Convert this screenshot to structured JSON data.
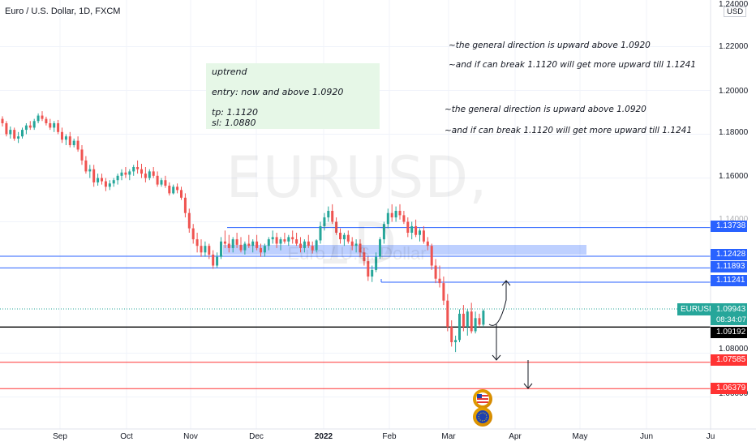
{
  "title": "Euro / U.S. Dollar, 1D, FXCM",
  "watermark": "EURUSD, 1D",
  "watermark_sub": "Euro / U.S. Dollar",
  "currency": "USD",
  "note": {
    "lines": [
      "uptrend",
      "entry: now and above 1.0920",
      "tp: 1.1120",
      "sl: 1.0880"
    ]
  },
  "annotations": [
    "~the general direction is upward above 1.0920",
    "~and if can break 1.1120 will get more upward till 1.1241",
    "~the general direction is upward above 1.0920",
    "~and if can break 1.1120 will get more upward till 1.1241"
  ],
  "y_axis": {
    "top_label": "1.24000",
    "labels": [
      "1.22000",
      "1.20000",
      "1.18000",
      "1.16000",
      "1.08000",
      "1.06000"
    ],
    "hidden_label": "1.14000"
  },
  "x_axis": {
    "labels": [
      "Sep",
      "Oct",
      "Nov",
      "Dec",
      "2022",
      "Feb",
      "Mar",
      "Apr",
      "May",
      "Jun",
      "Ju"
    ]
  },
  "levels": [
    {
      "price": "1.13738",
      "color": "#2962ff"
    },
    {
      "price": "1.12428",
      "color": "#2962ff"
    },
    {
      "price": "1.11893",
      "color": "#2962ff"
    },
    {
      "price": "1.11241",
      "color": "#2962ff"
    },
    {
      "price": "1.09192",
      "color": "#000000"
    },
    {
      "price": "1.07585",
      "color": "#ff3333"
    },
    {
      "price": "1.06379",
      "color": "#ff3333"
    }
  ],
  "symbol": {
    "name": "EURUSD",
    "price": "1.09943",
    "timer": "08:34:07",
    "color": "#26a69a"
  },
  "chart_data": {
    "type": "candlestick",
    "title": "Euro / U.S. Dollar, 1D, FXCM",
    "ylim": [
      1.055,
      1.245
    ],
    "candles": [
      {
        "o": 1.187,
        "h": 1.1882,
        "l": 1.1835,
        "c": 1.185
      },
      {
        "o": 1.185,
        "h": 1.186,
        "l": 1.179,
        "c": 1.18
      },
      {
        "o": 1.18,
        "h": 1.1835,
        "l": 1.178,
        "c": 1.182
      },
      {
        "o": 1.182,
        "h": 1.183,
        "l": 1.177,
        "c": 1.178
      },
      {
        "o": 1.178,
        "h": 1.181,
        "l": 1.176,
        "c": 1.179
      },
      {
        "o": 1.179,
        "h": 1.183,
        "l": 1.178,
        "c": 1.182
      },
      {
        "o": 1.182,
        "h": 1.185,
        "l": 1.18,
        "c": 1.184
      },
      {
        "o": 1.184,
        "h": 1.186,
        "l": 1.182,
        "c": 1.183
      },
      {
        "o": 1.183,
        "h": 1.187,
        "l": 1.182,
        "c": 1.186
      },
      {
        "o": 1.186,
        "h": 1.1895,
        "l": 1.185,
        "c": 1.1885
      },
      {
        "o": 1.1885,
        "h": 1.1905,
        "l": 1.186,
        "c": 1.187
      },
      {
        "o": 1.187,
        "h": 1.188,
        "l": 1.184,
        "c": 1.185
      },
      {
        "o": 1.185,
        "h": 1.187,
        "l": 1.182,
        "c": 1.183
      },
      {
        "o": 1.183,
        "h": 1.186,
        "l": 1.181,
        "c": 1.185
      },
      {
        "o": 1.185,
        "h": 1.1865,
        "l": 1.18,
        "c": 1.181
      },
      {
        "o": 1.181,
        "h": 1.183,
        "l": 1.176,
        "c": 1.1775
      },
      {
        "o": 1.1775,
        "h": 1.18,
        "l": 1.175,
        "c": 1.179
      },
      {
        "o": 1.179,
        "h": 1.181,
        "l": 1.174,
        "c": 1.175
      },
      {
        "o": 1.175,
        "h": 1.178,
        "l": 1.174,
        "c": 1.177
      },
      {
        "o": 1.177,
        "h": 1.179,
        "l": 1.172,
        "c": 1.173
      },
      {
        "o": 1.173,
        "h": 1.175,
        "l": 1.166,
        "c": 1.168
      },
      {
        "o": 1.168,
        "h": 1.17,
        "l": 1.162,
        "c": 1.163
      },
      {
        "o": 1.163,
        "h": 1.166,
        "l": 1.16,
        "c": 1.164
      },
      {
        "o": 1.164,
        "h": 1.166,
        "l": 1.156,
        "c": 1.158
      },
      {
        "o": 1.158,
        "h": 1.162,
        "l": 1.1565,
        "c": 1.16
      },
      {
        "o": 1.16,
        "h": 1.162,
        "l": 1.157,
        "c": 1.1585
      },
      {
        "o": 1.1585,
        "h": 1.16,
        "l": 1.154,
        "c": 1.156
      },
      {
        "o": 1.156,
        "h": 1.159,
        "l": 1.1545,
        "c": 1.1575
      },
      {
        "o": 1.1575,
        "h": 1.16,
        "l": 1.156,
        "c": 1.159
      },
      {
        "o": 1.159,
        "h": 1.162,
        "l": 1.157,
        "c": 1.161
      },
      {
        "o": 1.161,
        "h": 1.164,
        "l": 1.159,
        "c": 1.1625
      },
      {
        "o": 1.1625,
        "h": 1.165,
        "l": 1.16,
        "c": 1.1615
      },
      {
        "o": 1.1615,
        "h": 1.164,
        "l": 1.159,
        "c": 1.163
      },
      {
        "o": 1.163,
        "h": 1.166,
        "l": 1.161,
        "c": 1.165
      },
      {
        "o": 1.165,
        "h": 1.168,
        "l": 1.162,
        "c": 1.164
      },
      {
        "o": 1.164,
        "h": 1.1665,
        "l": 1.16,
        "c": 1.162
      },
      {
        "o": 1.162,
        "h": 1.165,
        "l": 1.158,
        "c": 1.16
      },
      {
        "o": 1.16,
        "h": 1.164,
        "l": 1.159,
        "c": 1.163
      },
      {
        "o": 1.163,
        "h": 1.165,
        "l": 1.16,
        "c": 1.161
      },
      {
        "o": 1.161,
        "h": 1.163,
        "l": 1.156,
        "c": 1.157
      },
      {
        "o": 1.157,
        "h": 1.16,
        "l": 1.156,
        "c": 1.159
      },
      {
        "o": 1.159,
        "h": 1.161,
        "l": 1.1555,
        "c": 1.1565
      },
      {
        "o": 1.1565,
        "h": 1.158,
        "l": 1.152,
        "c": 1.153
      },
      {
        "o": 1.153,
        "h": 1.157,
        "l": 1.1525,
        "c": 1.156
      },
      {
        "o": 1.156,
        "h": 1.1575,
        "l": 1.153,
        "c": 1.1545
      },
      {
        "o": 1.1545,
        "h": 1.156,
        "l": 1.15,
        "c": 1.151
      },
      {
        "o": 1.151,
        "h": 1.153,
        "l": 1.142,
        "c": 1.144
      },
      {
        "o": 1.144,
        "h": 1.146,
        "l": 1.135,
        "c": 1.137
      },
      {
        "o": 1.137,
        "h": 1.139,
        "l": 1.13,
        "c": 1.132
      },
      {
        "o": 1.132,
        "h": 1.135,
        "l": 1.126,
        "c": 1.129
      },
      {
        "o": 1.129,
        "h": 1.132,
        "l": 1.124,
        "c": 1.126
      },
      {
        "o": 1.126,
        "h": 1.131,
        "l": 1.124,
        "c": 1.129
      },
      {
        "o": 1.129,
        "h": 1.13,
        "l": 1.123,
        "c": 1.125
      },
      {
        "o": 1.125,
        "h": 1.127,
        "l": 1.1185,
        "c": 1.12
      },
      {
        "o": 1.12,
        "h": 1.126,
        "l": 1.119,
        "c": 1.124
      },
      {
        "o": 1.124,
        "h": 1.133,
        "l": 1.123,
        "c": 1.131
      },
      {
        "o": 1.131,
        "h": 1.136,
        "l": 1.128,
        "c": 1.13
      },
      {
        "o": 1.13,
        "h": 1.134,
        "l": 1.126,
        "c": 1.128
      },
      {
        "o": 1.128,
        "h": 1.133,
        "l": 1.126,
        "c": 1.132
      },
      {
        "o": 1.132,
        "h": 1.135,
        "l": 1.128,
        "c": 1.1295
      },
      {
        "o": 1.1295,
        "h": 1.133,
        "l": 1.126,
        "c": 1.127
      },
      {
        "o": 1.127,
        "h": 1.131,
        "l": 1.125,
        "c": 1.13
      },
      {
        "o": 1.13,
        "h": 1.134,
        "l": 1.128,
        "c": 1.129
      },
      {
        "o": 1.129,
        "h": 1.132,
        "l": 1.126,
        "c": 1.131
      },
      {
        "o": 1.131,
        "h": 1.134,
        "l": 1.127,
        "c": 1.128
      },
      {
        "o": 1.128,
        "h": 1.13,
        "l": 1.124,
        "c": 1.126
      },
      {
        "o": 1.126,
        "h": 1.13,
        "l": 1.124,
        "c": 1.129
      },
      {
        "o": 1.129,
        "h": 1.133,
        "l": 1.127,
        "c": 1.132
      },
      {
        "o": 1.132,
        "h": 1.136,
        "l": 1.13,
        "c": 1.133
      },
      {
        "o": 1.133,
        "h": 1.135,
        "l": 1.128,
        "c": 1.13
      },
      {
        "o": 1.13,
        "h": 1.133,
        "l": 1.127,
        "c": 1.132
      },
      {
        "o": 1.132,
        "h": 1.135,
        "l": 1.13,
        "c": 1.131
      },
      {
        "o": 1.131,
        "h": 1.134,
        "l": 1.129,
        "c": 1.133
      },
      {
        "o": 1.133,
        "h": 1.136,
        "l": 1.13,
        "c": 1.132
      },
      {
        "o": 1.132,
        "h": 1.135,
        "l": 1.129,
        "c": 1.13
      },
      {
        "o": 1.13,
        "h": 1.133,
        "l": 1.126,
        "c": 1.128
      },
      {
        "o": 1.128,
        "h": 1.132,
        "l": 1.126,
        "c": 1.131
      },
      {
        "o": 1.131,
        "h": 1.134,
        "l": 1.128,
        "c": 1.129
      },
      {
        "o": 1.129,
        "h": 1.131,
        "l": 1.1255,
        "c": 1.127
      },
      {
        "o": 1.127,
        "h": 1.132,
        "l": 1.126,
        "c": 1.1315
      },
      {
        "o": 1.1315,
        "h": 1.14,
        "l": 1.13,
        "c": 1.138
      },
      {
        "o": 1.138,
        "h": 1.144,
        "l": 1.136,
        "c": 1.142
      },
      {
        "o": 1.142,
        "h": 1.147,
        "l": 1.14,
        "c": 1.145
      },
      {
        "o": 1.145,
        "h": 1.148,
        "l": 1.139,
        "c": 1.14
      },
      {
        "o": 1.14,
        "h": 1.142,
        "l": 1.134,
        "c": 1.135
      },
      {
        "o": 1.135,
        "h": 1.137,
        "l": 1.13,
        "c": 1.132
      },
      {
        "o": 1.132,
        "h": 1.135,
        "l": 1.129,
        "c": 1.134
      },
      {
        "o": 1.134,
        "h": 1.136,
        "l": 1.13,
        "c": 1.131
      },
      {
        "o": 1.131,
        "h": 1.133,
        "l": 1.127,
        "c": 1.129
      },
      {
        "o": 1.129,
        "h": 1.132,
        "l": 1.126,
        "c": 1.13
      },
      {
        "o": 1.13,
        "h": 1.132,
        "l": 1.124,
        "c": 1.126
      },
      {
        "o": 1.126,
        "h": 1.128,
        "l": 1.12,
        "c": 1.122
      },
      {
        "o": 1.122,
        "h": 1.124,
        "l": 1.113,
        "c": 1.115
      },
      {
        "o": 1.115,
        "h": 1.12,
        "l": 1.1125,
        "c": 1.118
      },
      {
        "o": 1.118,
        "h": 1.126,
        "l": 1.117,
        "c": 1.124
      },
      {
        "o": 1.124,
        "h": 1.133,
        "l": 1.123,
        "c": 1.132
      },
      {
        "o": 1.132,
        "h": 1.14,
        "l": 1.13,
        "c": 1.139
      },
      {
        "o": 1.139,
        "h": 1.146,
        "l": 1.137,
        "c": 1.144
      },
      {
        "o": 1.144,
        "h": 1.148,
        "l": 1.14,
        "c": 1.142
      },
      {
        "o": 1.142,
        "h": 1.147,
        "l": 1.14,
        "c": 1.145
      },
      {
        "o": 1.145,
        "h": 1.148,
        "l": 1.141,
        "c": 1.143
      },
      {
        "o": 1.143,
        "h": 1.145,
        "l": 1.139,
        "c": 1.14
      },
      {
        "o": 1.14,
        "h": 1.142,
        "l": 1.133,
        "c": 1.135
      },
      {
        "o": 1.135,
        "h": 1.14,
        "l": 1.132,
        "c": 1.138
      },
      {
        "o": 1.138,
        "h": 1.141,
        "l": 1.133,
        "c": 1.134
      },
      {
        "o": 1.134,
        "h": 1.137,
        "l": 1.131,
        "c": 1.136
      },
      {
        "o": 1.136,
        "h": 1.138,
        "l": 1.13,
        "c": 1.131
      },
      {
        "o": 1.131,
        "h": 1.133,
        "l": 1.127,
        "c": 1.129
      },
      {
        "o": 1.129,
        "h": 1.13,
        "l": 1.118,
        "c": 1.12
      },
      {
        "o": 1.12,
        "h": 1.123,
        "l": 1.112,
        "c": 1.114
      },
      {
        "o": 1.114,
        "h": 1.12,
        "l": 1.11,
        "c": 1.112
      },
      {
        "o": 1.112,
        "h": 1.115,
        "l": 1.102,
        "c": 1.104
      },
      {
        "o": 1.104,
        "h": 1.107,
        "l": 1.09,
        "c": 1.092
      },
      {
        "o": 1.092,
        "h": 1.095,
        "l": 1.083,
        "c": 1.085
      },
      {
        "o": 1.085,
        "h": 1.088,
        "l": 1.0805,
        "c": 1.086
      },
      {
        "o": 1.086,
        "h": 1.1,
        "l": 1.085,
        "c": 1.098
      },
      {
        "o": 1.098,
        "h": 1.102,
        "l": 1.09,
        "c": 1.092
      },
      {
        "o": 1.092,
        "h": 1.1,
        "l": 1.088,
        "c": 1.099
      },
      {
        "o": 1.099,
        "h": 1.103,
        "l": 1.089,
        "c": 1.09
      },
      {
        "o": 1.09,
        "h": 1.099,
        "l": 1.089,
        "c": 1.096
      },
      {
        "o": 1.096,
        "h": 1.098,
        "l": 1.092,
        "c": 1.093
      },
      {
        "o": 1.093,
        "h": 1.1,
        "l": 1.092,
        "c": 1.0994
      }
    ]
  }
}
